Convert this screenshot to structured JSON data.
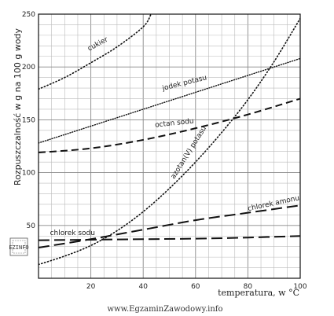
{
  "chart_data": {
    "type": "line",
    "title": "",
    "xlabel": "temperatura, w °C",
    "ylabel": "Rozpuszczalność w g na 100 g wody",
    "xlim": [
      0,
      100
    ],
    "ylim": [
      0,
      250
    ],
    "x_ticks": [
      20,
      40,
      60,
      80,
      100
    ],
    "y_ticks": [
      50,
      100,
      150,
      200,
      250
    ],
    "grid": true,
    "series": [
      {
        "name": "cukier",
        "style": "dotted",
        "points": [
          [
            0,
            179
          ],
          [
            10,
            190
          ],
          [
            20,
            204
          ],
          [
            30,
            219
          ],
          [
            40,
            238
          ],
          [
            43,
            250
          ]
        ]
      },
      {
        "name": "jodek potasu",
        "style": "dense-dotted",
        "points": [
          [
            0,
            128
          ],
          [
            20,
            144
          ],
          [
            40,
            160
          ],
          [
            60,
            176
          ],
          [
            80,
            192
          ],
          [
            100,
            208
          ]
        ]
      },
      {
        "name": "octan sodu",
        "style": "dashed",
        "points": [
          [
            0,
            119
          ],
          [
            20,
            123
          ],
          [
            40,
            131
          ],
          [
            60,
            142
          ],
          [
            80,
            155
          ],
          [
            100,
            170
          ]
        ]
      },
      {
        "name": "azotan(V) potasu",
        "style": "dotted",
        "points": [
          [
            0,
            13
          ],
          [
            10,
            21
          ],
          [
            20,
            31
          ],
          [
            30,
            45
          ],
          [
            40,
            63
          ],
          [
            50,
            85
          ],
          [
            60,
            110
          ],
          [
            70,
            138
          ],
          [
            80,
            169
          ],
          [
            90,
            205
          ],
          [
            100,
            246
          ]
        ]
      },
      {
        "name": "chlorek amonu",
        "style": "long-dashed",
        "points": [
          [
            0,
            29
          ],
          [
            20,
            37
          ],
          [
            40,
            46
          ],
          [
            60,
            55
          ],
          [
            80,
            62
          ],
          [
            100,
            69
          ]
        ]
      },
      {
        "name": "chlorek sodu",
        "style": "long-dashed",
        "points": [
          [
            0,
            36
          ],
          [
            20,
            36.5
          ],
          [
            40,
            37
          ],
          [
            60,
            37.5
          ],
          [
            80,
            38.5
          ],
          [
            100,
            40
          ]
        ]
      }
    ],
    "annotations": [
      {
        "text": "cukier",
        "series": "cukier",
        "x": 23,
        "y": 220,
        "angle": -28
      },
      {
        "text": "jodek potasu",
        "series": "jodek potasu",
        "x": 56,
        "y": 183,
        "angle": -14
      },
      {
        "text": "octan sodu",
        "series": "octan sodu",
        "x": 52,
        "y": 145,
        "angle": -6
      },
      {
        "text": "azotan(V) potasu",
        "series": "azotan(V) potasu",
        "x": 58,
        "y": 118,
        "angle": -58
      },
      {
        "text": "chlorek amonu",
        "series": "chlorek amonu",
        "x": 90,
        "y": 69,
        "angle": -12
      },
      {
        "text": "chlorek sodu",
        "series": "chlorek sodu",
        "x": 13,
        "y": 41,
        "angle": 0
      }
    ]
  },
  "watermark": "www.EgzaminZawodowy.info",
  "stamp_text": "EZINFO"
}
